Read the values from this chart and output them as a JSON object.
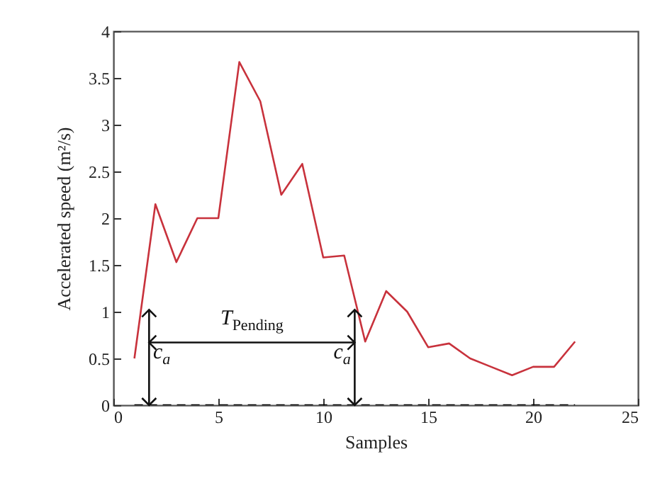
{
  "chart_data": {
    "type": "line",
    "xlabel": "Samples",
    "ylabel": "Accelerated speed (m²/s)",
    "xlim": [
      0,
      25
    ],
    "xticks": [
      0,
      5,
      10,
      15,
      20,
      25
    ],
    "ylim": [
      0,
      4
    ],
    "yticks": [
      0,
      0.5,
      1,
      1.5,
      2,
      2.5,
      3,
      3.5,
      4
    ],
    "series": [
      {
        "color": "#c8323c",
        "line_style": "solid",
        "x": [
          1,
          2,
          3,
          4,
          5,
          6,
          7,
          8,
          9,
          10,
          11,
          12,
          13,
          14,
          15,
          16,
          17,
          18,
          19,
          20,
          21,
          22
        ],
        "values": [
          0.5,
          2.15,
          1.53,
          2.0,
          2.0,
          3.67,
          3.25,
          2.25,
          2.58,
          1.58,
          1.6,
          0.68,
          1.22,
          1.0,
          0.62,
          0.66,
          0.5,
          0.41,
          0.32,
          0.41,
          0.41,
          0.68
        ]
      },
      {
        "color": "#000000",
        "line_style": "dashed",
        "x": [
          1,
          22
        ],
        "values": [
          0,
          0
        ]
      }
    ],
    "annotations": [
      "T$_{Pending}$",
      "c$_{a}$",
      "c$_{a}$"
    ]
  }
}
